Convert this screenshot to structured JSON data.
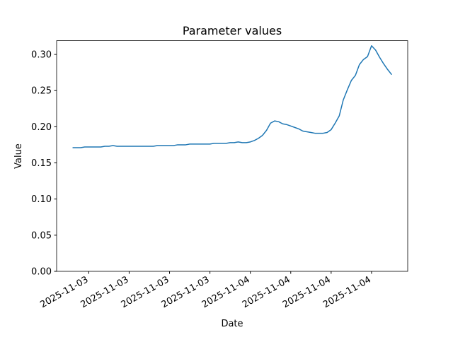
{
  "chart_data": {
    "type": "line",
    "title": "Parameter values",
    "xlabel": "Date",
    "ylabel": "Value",
    "x": [
      0,
      1,
      2,
      3,
      4,
      5,
      6,
      7,
      8,
      9,
      10,
      11,
      12,
      13,
      14,
      15,
      16,
      17,
      18,
      19,
      20,
      21,
      22,
      23,
      24,
      25,
      26,
      27,
      28,
      29,
      30,
      31,
      32,
      33,
      34,
      35,
      36,
      37,
      38,
      39,
      40,
      41,
      42,
      43,
      44,
      45,
      46,
      47,
      48,
      49,
      50,
      51,
      52,
      53,
      54,
      55,
      56,
      57,
      58,
      59,
      60,
      61,
      62,
      63,
      64,
      65,
      66,
      67,
      68,
      69,
      70,
      71,
      72,
      73,
      74,
      75,
      76,
      77,
      78,
      79
    ],
    "series": [
      {
        "color": "#1f77b4",
        "values": [
          0.171,
          0.171,
          0.171,
          0.172,
          0.172,
          0.172,
          0.172,
          0.172,
          0.173,
          0.173,
          0.174,
          0.173,
          0.173,
          0.173,
          0.173,
          0.173,
          0.173,
          0.173,
          0.173,
          0.173,
          0.173,
          0.174,
          0.174,
          0.174,
          0.174,
          0.174,
          0.175,
          0.175,
          0.175,
          0.176,
          0.176,
          0.176,
          0.176,
          0.176,
          0.176,
          0.177,
          0.177,
          0.177,
          0.177,
          0.178,
          0.178,
          0.179,
          0.178,
          0.178,
          0.179,
          0.181,
          0.184,
          0.188,
          0.195,
          0.205,
          0.208,
          0.207,
          0.204,
          0.203,
          0.201,
          0.199,
          0.197,
          0.194,
          0.193,
          0.192,
          0.191,
          0.191,
          0.191,
          0.192,
          0.196,
          0.205,
          0.215,
          0.237,
          0.251,
          0.264,
          0.271,
          0.286,
          0.293,
          0.297,
          0.312,
          0.306,
          0.296,
          0.287,
          0.279,
          0.272
        ]
      }
    ],
    "xlim": [
      -3.95,
      82.95
    ],
    "xticks": [
      {
        "value": 4,
        "label": "2025-11-03"
      },
      {
        "value": 14,
        "label": "2025-11-03"
      },
      {
        "value": 24,
        "label": "2025-11-03"
      },
      {
        "value": 34,
        "label": "2025-11-03"
      },
      {
        "value": 44,
        "label": "2025-11-04"
      },
      {
        "value": 54,
        "label": "2025-11-04"
      },
      {
        "value": 64,
        "label": "2025-11-04"
      },
      {
        "value": 74,
        "label": "2025-11-04"
      }
    ],
    "ylim": [
      0,
      0.319
    ],
    "yticks": [
      {
        "value": 0,
        "label": "0.00"
      },
      {
        "value": 0.05,
        "label": "0.05"
      },
      {
        "value": 0.1,
        "label": "0.10"
      },
      {
        "value": 0.15,
        "label": "0.15"
      },
      {
        "value": 0.2,
        "label": "0.20"
      },
      {
        "value": 0.25,
        "label": "0.25"
      },
      {
        "value": 0.3,
        "label": "0.30"
      }
    ]
  }
}
